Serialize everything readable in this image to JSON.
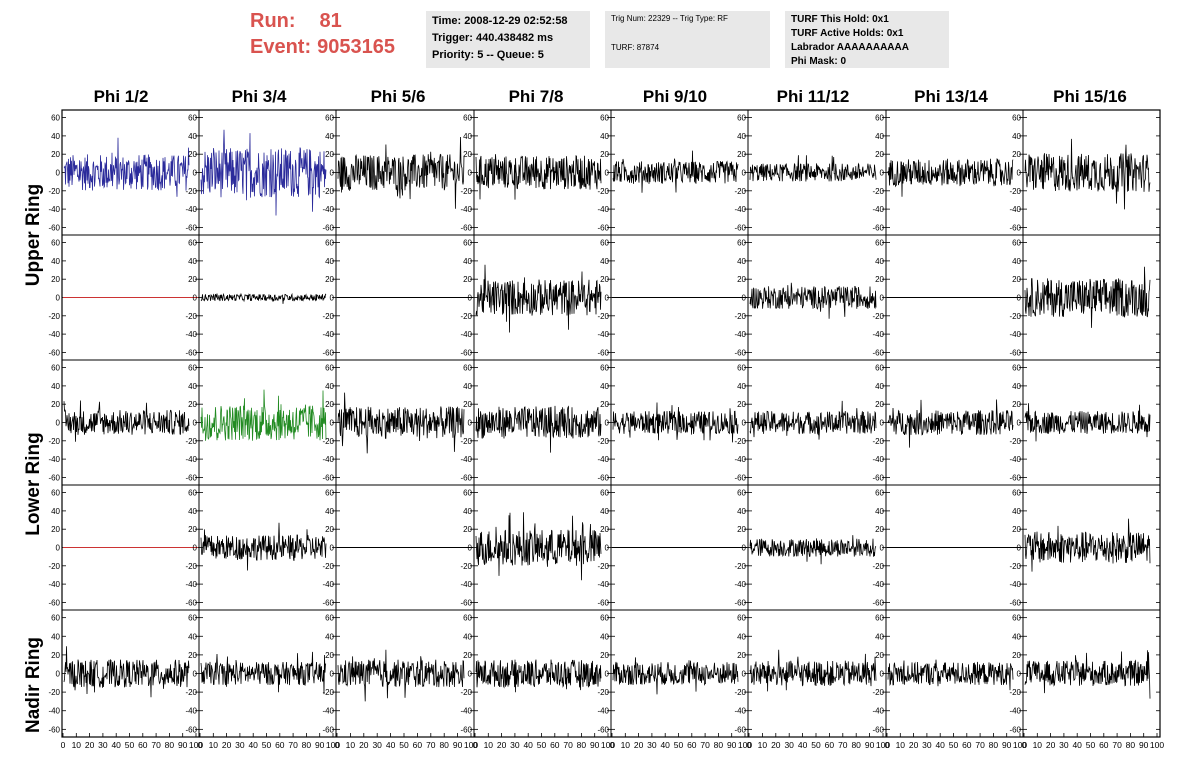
{
  "run": {
    "run_label": "Run:",
    "run_value": "81",
    "event_label": "Event:",
    "event_value": "9053165"
  },
  "info_time": {
    "time": "Time: 2008-12-29 02:52:58",
    "trigger": "Trigger: 440.438482 ms",
    "priority": "Priority: 5 -- Queue: 5"
  },
  "info_trig": {
    "trig": "Trig Num: 22329 -- Trig Type: RF",
    "turf": "TURF: 87874"
  },
  "info_turf": {
    "hold": "TURF This Hold: 0x1",
    "active": "TURF Active Holds: 0x1",
    "labrador": "Labrador AAAAAAAAAA",
    "phimask": "Phi Mask: 0"
  },
  "phi_headers": [
    "Phi 1/2",
    "Phi 3/4",
    "Phi 5/6",
    "Phi 7/8",
    "Phi 9/10",
    "Phi 11/12",
    "Phi 13/14",
    "Phi 15/16"
  ],
  "ring_labels": {
    "upper": "Upper Ring",
    "lower": "Lower Ring",
    "nadir": "Nadir Ring"
  },
  "axis": {
    "y_ticks": [
      "60",
      "40",
      "20",
      "0",
      "-20",
      "-40",
      "-60"
    ],
    "x_ticks": [
      "0",
      "10",
      "20",
      "30",
      "40",
      "50",
      "60",
      "70",
      "80",
      "90",
      "100"
    ],
    "y_range": [
      -65,
      65
    ],
    "x_range": [
      0,
      100
    ]
  },
  "colors": {
    "default_trace": "#000000",
    "highlight_upper": "#2b2b9b",
    "highlight_lower": "#228b22",
    "flat_trace": "#cc3333",
    "run_text": "#d9534f",
    "info_bg": "#e8e8e8"
  },
  "panels": [
    [
      {
        "amp": 16,
        "color": "highlight_upper"
      },
      {
        "amp": 22,
        "color": "highlight_upper"
      },
      {
        "amp": 16,
        "color": "default_trace"
      },
      {
        "amp": 15,
        "color": "default_trace"
      },
      {
        "amp": 10,
        "color": "default_trace"
      },
      {
        "amp": 8,
        "color": "default_trace"
      },
      {
        "amp": 12,
        "color": "default_trace"
      },
      {
        "amp": 17,
        "color": "default_trace"
      }
    ],
    [
      {
        "amp": 0,
        "color": "flat_trace"
      },
      {
        "amp": 3,
        "color": "default_trace"
      },
      {
        "amp": 0,
        "color": "default_trace"
      },
      {
        "amp": 16,
        "color": "default_trace"
      },
      {
        "amp": 0,
        "color": "default_trace"
      },
      {
        "amp": 10,
        "color": "default_trace"
      },
      {
        "amp": 0,
        "color": "default_trace"
      },
      {
        "amp": 17,
        "color": "default_trace"
      }
    ],
    [
      {
        "amp": 11,
        "color": "default_trace"
      },
      {
        "amp": 16,
        "color": "highlight_lower"
      },
      {
        "amp": 14,
        "color": "default_trace"
      },
      {
        "amp": 14,
        "color": "default_trace"
      },
      {
        "amp": 10,
        "color": "default_trace"
      },
      {
        "amp": 10,
        "color": "default_trace"
      },
      {
        "amp": 11,
        "color": "default_trace"
      },
      {
        "amp": 10,
        "color": "default_trace"
      }
    ],
    [
      {
        "amp": 0,
        "color": "flat_trace"
      },
      {
        "amp": 11,
        "color": "default_trace"
      },
      {
        "amp": 0,
        "color": "default_trace"
      },
      {
        "amp": 16,
        "color": "default_trace"
      },
      {
        "amp": 0,
        "color": "default_trace"
      },
      {
        "amp": 8,
        "color": "default_trace"
      },
      {
        "amp": 0,
        "color": "default_trace"
      },
      {
        "amp": 14,
        "color": "default_trace"
      }
    ],
    [
      {
        "amp": 12,
        "color": "default_trace"
      },
      {
        "amp": 10,
        "color": "default_trace"
      },
      {
        "amp": 12,
        "color": "default_trace"
      },
      {
        "amp": 12,
        "color": "default_trace"
      },
      {
        "amp": 10,
        "color": "default_trace"
      },
      {
        "amp": 11,
        "color": "default_trace"
      },
      {
        "amp": 10,
        "color": "default_trace"
      },
      {
        "amp": 11,
        "color": "default_trace"
      }
    ]
  ]
}
